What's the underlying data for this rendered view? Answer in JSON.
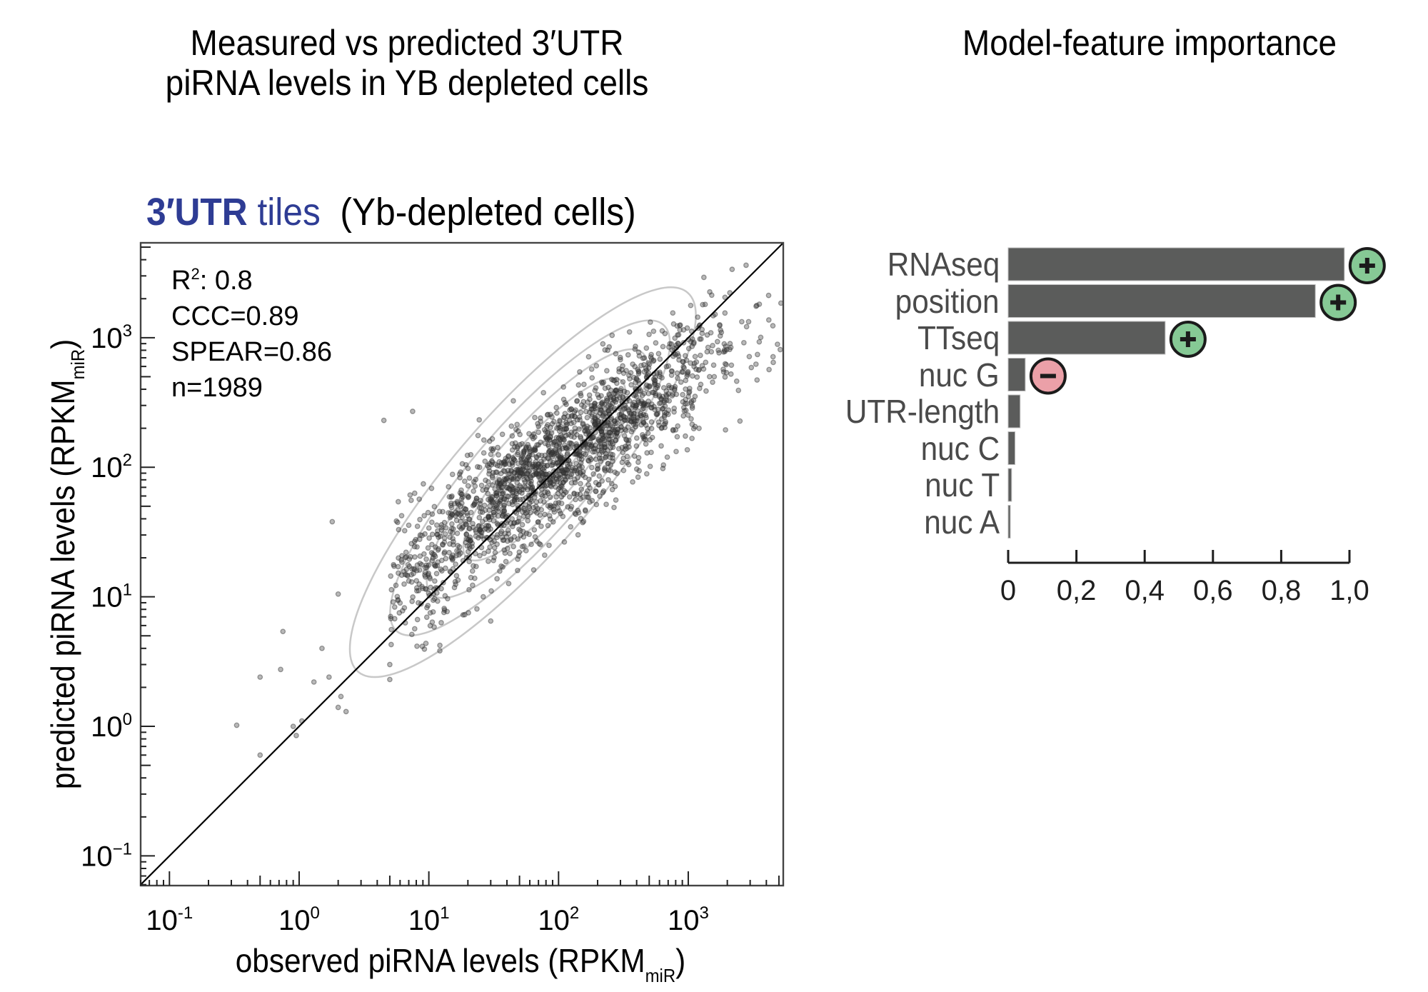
{
  "titles": {
    "left_line1": "Measured vs predicted 3′UTR",
    "left_line2": "piRNA levels in YB depleted cells",
    "right": "Model-feature importance"
  },
  "chart_data": [
    {
      "type": "scatter",
      "subtitle": {
        "part1_bold": "3′UTR",
        "part2": " tiles",
        "part3": "  (Yb-depleted cells)",
        "highlight_color": "#2e3c94"
      },
      "xlabel": "observed piRNA levels (RPKM",
      "xlabel_sub": "miR",
      "xlabel_end": ")",
      "ylabel": "predicted piRNA levels (RPKM",
      "ylabel_sub": "miR",
      "ylabel_end": ")",
      "xscale": "log",
      "yscale": "log",
      "xlim": [
        0.06,
        5400
      ],
      "ylim": [
        0.059,
        5400
      ],
      "x_ticks": [
        {
          "value": 0.1,
          "base": "10",
          "exp": "-1"
        },
        {
          "value": 1,
          "base": "10",
          "exp": "0"
        },
        {
          "value": 10,
          "base": "10",
          "exp": "1"
        },
        {
          "value": 100,
          "base": "10",
          "exp": "2"
        },
        {
          "value": 1000,
          "base": "10",
          "exp": "3"
        }
      ],
      "y_ticks": [
        {
          "value": 0.1,
          "base": "10",
          "exp": "−1"
        },
        {
          "value": 1,
          "base": "10",
          "exp": "0"
        },
        {
          "value": 10,
          "base": "10",
          "exp": "1"
        },
        {
          "value": 100,
          "base": "10",
          "exp": "2"
        },
        {
          "value": 1000,
          "base": "10",
          "exp": "3"
        }
      ],
      "stats": {
        "r2_label": "R",
        "r2_sup": "2",
        "r2_value": ": 0.8",
        "ccc": "CCC=0.89",
        "spear": "SPEAR=0.86",
        "n": "n=1989"
      },
      "n_points": 1989,
      "point_cloud_model": {
        "center_log10_x": 2.0,
        "center_log10_y": 2.05,
        "spread_log10_x": 0.62,
        "spread_log10_y": 0.52,
        "correlation": 0.88
      },
      "outliers": [
        {
          "x": 0.33,
          "y": 1.02
        },
        {
          "x": 0.5,
          "y": 0.6
        },
        {
          "x": 0.5,
          "y": 2.4
        },
        {
          "x": 0.72,
          "y": 2.75
        },
        {
          "x": 0.75,
          "y": 5.4
        },
        {
          "x": 0.9,
          "y": 1.0
        },
        {
          "x": 0.95,
          "y": 0.85
        },
        {
          "x": 1.05,
          "y": 1.1
        },
        {
          "x": 1.3,
          "y": 2.2
        },
        {
          "x": 1.5,
          "y": 4.0
        },
        {
          "x": 1.7,
          "y": 2.4
        },
        {
          "x": 2.0,
          "y": 1.4
        },
        {
          "x": 2.1,
          "y": 1.7
        },
        {
          "x": 2.3,
          "y": 1.3
        },
        {
          "x": 1.8,
          "y": 38
        },
        {
          "x": 4.5,
          "y": 230
        },
        {
          "x": 7.5,
          "y": 270
        },
        {
          "x": 5.0,
          "y": 2.3
        },
        {
          "x": 5.0,
          "y": 3.0
        },
        {
          "x": 2.0,
          "y": 10.5
        },
        {
          "x": 1800,
          "y": 1100
        },
        {
          "x": 2100,
          "y": 900
        },
        {
          "x": 1400,
          "y": 1050
        },
        {
          "x": 30,
          "y": 6.5
        }
      ],
      "identity_line": true,
      "density_contours": true,
      "grid": false,
      "colors": {
        "points": "#333333",
        "contour": "#c8c8c8",
        "line": "#000000",
        "frame": "#444444"
      }
    },
    {
      "type": "bar",
      "orientation": "horizontal",
      "categories": [
        "RNAseq",
        "position",
        "TTseq",
        "nuc G",
        "UTR-length",
        "nuc C",
        "nuc T",
        "nuc A"
      ],
      "values": [
        0.985,
        0.9,
        0.46,
        0.05,
        0.035,
        0.02,
        0.01,
        0.006
      ],
      "direction": [
        "+",
        "+",
        "+",
        "-",
        null,
        null,
        null,
        null
      ],
      "xlim": [
        0,
        1.0
      ],
      "x_ticks": [
        "0",
        "0,2",
        "0,4",
        "0,6",
        "0,8",
        "1,0"
      ],
      "x_tick_values": [
        0,
        0.2,
        0.4,
        0.6,
        0.8,
        1.0
      ],
      "colors": {
        "bar": "#5b5c5b",
        "positive": "#86c995",
        "negative": "#eba0a8",
        "label": "#4a4a4a"
      }
    }
  ]
}
